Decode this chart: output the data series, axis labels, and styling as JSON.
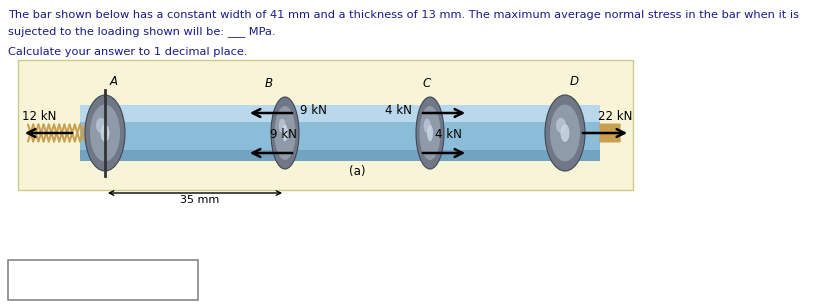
{
  "title_line1": "The bar shown below has a constant width of 41 mm and a thickness of 13 mm. The maximum average normal stress in the bar when it is",
  "title_line2": "sujected to the loading shown will be: ___ MPa.",
  "subtitle": "Calculate your answer to 1 decimal place.",
  "label_A": "A",
  "label_B": "B",
  "label_C": "C",
  "label_D": "D",
  "force_left": "12 kN",
  "force_right": "22 kN",
  "force_B_top": "9 kN",
  "force_B_bot": "9 kN",
  "force_C_top": "4 kN",
  "force_C_bot": "4 kN",
  "dim_label": "35 mm",
  "sub_label": "(a)",
  "panel_bg": "#f7f4d8",
  "bar_color": "#8bbdd9",
  "bar_highlight": "#c5dff0",
  "bar_shadow": "#5a8daa",
  "disk_color": "#8899aa",
  "disk_highlight": "#aabbcc",
  "rope_color": "#c8a050",
  "text_color": "#000000"
}
